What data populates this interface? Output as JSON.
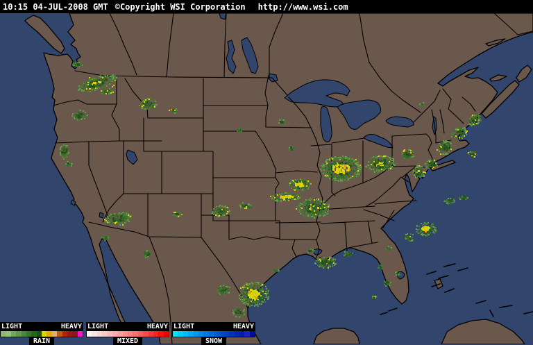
{
  "header": {
    "timestamp": "10:15 04-JUL-2008 GMT",
    "copyright": "©Copyright WSI Corporation",
    "url": "http://www.wsi.com"
  },
  "map": {
    "land_color": "#6b584c",
    "water_color": "#32456c",
    "outline_color": "#000000",
    "radar_palette": {
      "green_dark": "#24511c",
      "green": "#336627",
      "green_mid": "#477d33",
      "green_light": "#679a4b",
      "yellow": "#d6d30a",
      "orange": "#e8961b"
    },
    "echo_format": "[x, y, radius_x, radius_y, rotation_deg, intensity(0=light,1=moderate,2=heavy), yellow_specks(0/1)]",
    "radar_echoes": [
      [
        140,
        120,
        30,
        9,
        -18,
        1,
        1
      ],
      [
        112,
        93,
        7,
        4,
        0,
        0,
        0
      ],
      [
        154,
        132,
        9,
        5,
        -10,
        1,
        1
      ],
      [
        214,
        150,
        13,
        8,
        -10,
        0,
        1
      ],
      [
        250,
        160,
        6,
        4,
        0,
        0,
        1
      ],
      [
        115,
        166,
        11,
        7,
        0,
        0,
        0
      ],
      [
        93,
        218,
        7,
        11,
        0,
        0,
        0
      ],
      [
        99,
        236,
        5,
        4,
        0,
        0,
        0
      ],
      [
        170,
        315,
        20,
        9,
        -8,
        0,
        1
      ],
      [
        152,
        343,
        5,
        4,
        0,
        0,
        0
      ],
      [
        212,
        366,
        7,
        5,
        0,
        0,
        0
      ],
      [
        256,
        308,
        7,
        4,
        0,
        0,
        1
      ],
      [
        318,
        304,
        13,
        8,
        -5,
        0,
        1
      ],
      [
        358,
        298,
        5,
        3,
        0,
        0,
        0
      ],
      [
        345,
        188,
        4,
        3,
        0,
        0,
        0
      ],
      [
        406,
        176,
        5,
        4,
        0,
        0,
        0
      ],
      [
        420,
        214,
        4,
        3,
        0,
        0,
        0
      ],
      [
        352,
        296,
        8,
        4,
        0,
        0,
        1
      ],
      [
        412,
        284,
        22,
        6,
        -4,
        2,
        1
      ],
      [
        432,
        266,
        16,
        9,
        0,
        2,
        1
      ],
      [
        452,
        300,
        24,
        14,
        0,
        1,
        1
      ],
      [
        492,
        243,
        30,
        18,
        0,
        2,
        1
      ],
      [
        548,
        236,
        22,
        12,
        -6,
        1,
        1
      ],
      [
        588,
        222,
        10,
        7,
        0,
        0,
        1
      ],
      [
        604,
        248,
        9,
        9,
        0,
        1,
        1
      ],
      [
        622,
        237,
        9,
        7,
        0,
        0,
        1
      ],
      [
        641,
        213,
        11,
        10,
        -20,
        0,
        1
      ],
      [
        662,
        192,
        12,
        8,
        -25,
        0,
        1
      ],
      [
        684,
        173,
        11,
        7,
        -30,
        0,
        1
      ],
      [
        680,
        222,
        8,
        4,
        0,
        0,
        1
      ],
      [
        648,
        290,
        8,
        5,
        0,
        1,
        0
      ],
      [
        668,
        285,
        7,
        4,
        0,
        1,
        0
      ],
      [
        614,
        330,
        15,
        10,
        0,
        2,
        0
      ],
      [
        590,
        342,
        7,
        6,
        0,
        1,
        0
      ],
      [
        560,
        358,
        5,
        3,
        0,
        1,
        0
      ],
      [
        548,
        384,
        4,
        3,
        0,
        1,
        0
      ],
      [
        558,
        408,
        5,
        4,
        0,
        1,
        0
      ],
      [
        573,
        394,
        3,
        3,
        0,
        0,
        0
      ],
      [
        540,
        428,
        3,
        3,
        0,
        1,
        0
      ],
      [
        470,
        378,
        16,
        8,
        0,
        0,
        1
      ],
      [
        502,
        366,
        7,
        4,
        0,
        1,
        0
      ],
      [
        448,
        362,
        5,
        3,
        0,
        0,
        0
      ],
      [
        366,
        424,
        22,
        18,
        0,
        2,
        1
      ],
      [
        322,
        418,
        11,
        7,
        0,
        0,
        0
      ],
      [
        344,
        450,
        9,
        7,
        0,
        0,
        0
      ],
      [
        330,
        468,
        6,
        4,
        0,
        0,
        0
      ],
      [
        398,
        390,
        4,
        3,
        0,
        1,
        0
      ],
      [
        608,
        150,
        4,
        2,
        0,
        0,
        0
      ]
    ]
  },
  "legend": {
    "groups": [
      {
        "name": "RAIN",
        "light_label": "LIGHT",
        "heavy_label": "HEAVY",
        "colors": [
          "#8cb86c",
          "#96c076",
          "#74a858",
          "#5f9a4a",
          "#49883a",
          "#35782c",
          "#246820",
          "#175414",
          "#d4d400",
          "#e8a800",
          "#d8ae7c",
          "#c05a10",
          "#b42408",
          "#9c1616",
          "#8a1420",
          "#f818cc"
        ]
      },
      {
        "name": "MIXED",
        "light_label": "LIGHT",
        "heavy_label": "HEAVY",
        "colors": [
          "#fdf4f4",
          "#fce4e4",
          "#fbd6d6",
          "#fac8c8",
          "#f9baba",
          "#f8acac",
          "#f89e9e",
          "#f89090",
          "#f88080",
          "#f87070",
          "#f85e5e",
          "#f84a4a",
          "#f83636",
          "#f82222",
          "#f81010",
          "#f00000"
        ]
      },
      {
        "name": "SNOW",
        "light_label": "LIGHT",
        "heavy_label": "HEAVY",
        "colors": [
          "#00e4f8",
          "#00d0f8",
          "#00bcf8",
          "#00aaf4",
          "#0098ee",
          "#0088e8",
          "#0078e0",
          "#0068d8",
          "#005ad0",
          "#004cc8",
          "#0040c0",
          "#0034b8",
          "#0028b0",
          "#001ea8",
          "#1428c0",
          "#000e90"
        ]
      }
    ]
  }
}
